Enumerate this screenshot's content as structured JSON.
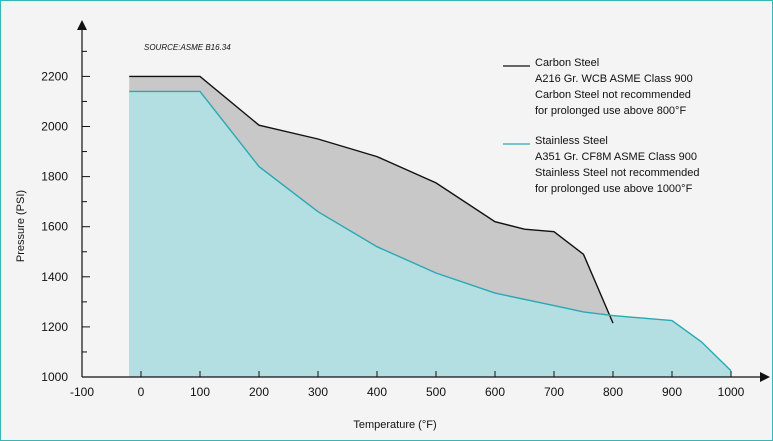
{
  "colors": {
    "background": "#f4f4f4",
    "border": "#39b5b5",
    "carbon_line": "#111111",
    "carbon_fill": "#c8c8c8",
    "stainless_line": "#2aa8b4",
    "stainless_fill": "#b3dee2"
  },
  "chart_data": {
    "type": "area",
    "source": "SOURCE:ASME B16.34",
    "xlabel": "Temperature (°F)",
    "ylabel": "Pressure (PSI)",
    "xlim": [
      -100,
      1000
    ],
    "ylim": [
      1000,
      2300
    ],
    "x_ticks": [
      -100,
      0,
      100,
      200,
      300,
      400,
      500,
      600,
      700,
      800,
      900,
      1000
    ],
    "y_ticks": [
      1000,
      1200,
      1400,
      1600,
      1800,
      2000,
      2200
    ],
    "x_tick_labels": [
      "-100",
      "0",
      "100",
      "200",
      "300",
      "400",
      "500",
      "600",
      "700",
      "800",
      "900",
      "1000"
    ],
    "y_tick_labels": [
      "1000",
      "1200",
      "1400",
      "1600",
      "1800",
      "2000",
      "2200"
    ],
    "legend_position": "top-right",
    "series": [
      {
        "name": "Carbon Steel",
        "legend_lines": [
          "Carbon Steel",
          "A216 Gr. WCB ASME Class 900",
          "Carbon Steel not recommended",
          "for prolonged use above 800°F"
        ],
        "x": [
          -20,
          100,
          200,
          300,
          400,
          500,
          600,
          650,
          700,
          750,
          800
        ],
        "y": [
          2200,
          2200,
          2005,
          1950,
          1880,
          1775,
          1620,
          1590,
          1580,
          1490,
          1215
        ]
      },
      {
        "name": "Stainless Steel",
        "legend_lines": [
          "Stainless Steel",
          "A351 Gr. CF8M ASME Class 900",
          "Stainless Steel not recommended",
          "for prolonged use above 1000°F"
        ],
        "x": [
          -20,
          100,
          200,
          300,
          400,
          500,
          600,
          700,
          750,
          800,
          850,
          900,
          950,
          1000
        ],
        "y": [
          2140,
          2140,
          1840,
          1660,
          1520,
          1415,
          1335,
          1285,
          1260,
          1245,
          1235,
          1225,
          1140,
          1025
        ]
      }
    ]
  }
}
